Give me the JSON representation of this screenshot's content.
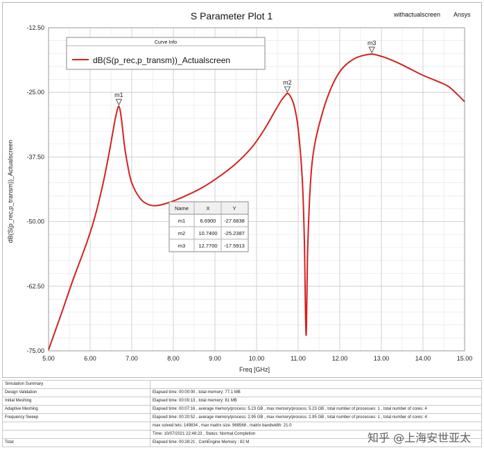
{
  "chart_data": {
    "type": "line",
    "title": "S Parameter Plot 1",
    "corner_labels": [
      "withactualscreen",
      "Ansys"
    ],
    "xlabel": "Freq [GHz]",
    "ylabel": "dB(S(p_rec,p_transm))_Actualscreen",
    "xlim": [
      5.0,
      15.0
    ],
    "ylim": [
      -75.0,
      -12.5
    ],
    "x_ticks": [
      "5.00",
      "6.00",
      "7.00",
      "8.00",
      "9.00",
      "10.00",
      "11.00",
      "12.00",
      "13.00",
      "14.00",
      "15.00"
    ],
    "y_ticks": [
      "-12.50",
      "-25.00",
      "-37.50",
      "-50.00",
      "-62.50",
      "-75.00"
    ],
    "grid": true,
    "legend": {
      "header": "Curve Info",
      "placement": "top-left",
      "entries": [
        "dB(S(p_rec,p_transm))_Actualscreen"
      ]
    },
    "series": [
      {
        "name": "dB(S(p_rec,p_transm))_Actualscreen",
        "color": "#d42020",
        "x": [
          5.0,
          5.3,
          5.6,
          5.9,
          6.1,
          6.3,
          6.45,
          6.55,
          6.62,
          6.69,
          6.75,
          6.82,
          6.9,
          7.0,
          7.2,
          7.4,
          7.6,
          7.9,
          8.3,
          8.7,
          9.1,
          9.5,
          9.9,
          10.2,
          10.45,
          10.6,
          10.7,
          10.74,
          10.8,
          10.9,
          11.0,
          11.1,
          11.15,
          11.19,
          11.23,
          11.3,
          11.4,
          11.6,
          11.8,
          12.0,
          12.2,
          12.4,
          12.6,
          12.77,
          12.9,
          13.1,
          13.4,
          13.7,
          14.0,
          14.3,
          14.6,
          14.8,
          15.0
        ],
        "y": [
          -74.8,
          -68.0,
          -61.0,
          -54.5,
          -49.5,
          -43.0,
          -37.0,
          -32.5,
          -29.5,
          -27.7,
          -30.0,
          -35.0,
          -39.0,
          -42.5,
          -45.5,
          -46.7,
          -46.9,
          -46.3,
          -45.0,
          -43.4,
          -41.3,
          -38.8,
          -35.5,
          -32.0,
          -28.5,
          -26.5,
          -25.5,
          -25.2,
          -25.6,
          -27.5,
          -32.0,
          -42.0,
          -54.0,
          -72.0,
          -55.0,
          -42.0,
          -35.0,
          -28.5,
          -24.0,
          -21.0,
          -19.3,
          -18.3,
          -17.8,
          -17.6,
          -17.8,
          -18.3,
          -19.3,
          -20.5,
          -21.7,
          -22.7,
          -23.8,
          -25.2,
          -26.8
        ]
      }
    ],
    "markers": [
      {
        "name": "m1",
        "x": 6.69,
        "y": -27.6838
      },
      {
        "name": "m2",
        "x": 10.74,
        "y": -25.2387
      },
      {
        "name": "m3",
        "x": 12.77,
        "y": -17.5913
      }
    ],
    "marker_table": {
      "headers": [
        "Name",
        "X",
        "Y"
      ],
      "rows": [
        [
          "m1",
          "6.6900",
          "-27.6838"
        ],
        [
          "m2",
          "10.7400",
          "-25.2387"
        ],
        [
          "m3",
          "12.7700",
          "-17.5913"
        ]
      ]
    }
  },
  "summary": {
    "rows": [
      [
        "Simulation Summary",
        ""
      ],
      [
        "Design Validation",
        "Elapsed time: 00:00:00 , total memory: 77.1 MB"
      ],
      [
        "Initial Meshing",
        "Elapsed time: 00:00:13 , total memory: 81 MB"
      ],
      [
        "Adaptive Meshing",
        "Elapsed time: 00:07:16 , average memory/process: 5.23 GB , max memory/process: 5.23 GB , total number of processes: 1 , total number of cores: 4"
      ],
      [
        "Frequency Sweep",
        "Elapsed time: 00:20:52 , average memory/process: 2.95 GB , max memory/process: 2.95 GB , total number of processes: 1 , total number of cores: 4"
      ],
      [
        "",
        "max solved tets: 149834 , max matrix size: 968568 , matrix bandwidth: 21.0"
      ],
      [
        "",
        "Time: 10/07/2021 22:48:23 , Status: Normal Completion"
      ],
      [
        "Total",
        "Elapsed time: 00:28:21 , ComEngine Memory : 82 M"
      ]
    ]
  },
  "watermark": "知乎 @上海安世亚太"
}
